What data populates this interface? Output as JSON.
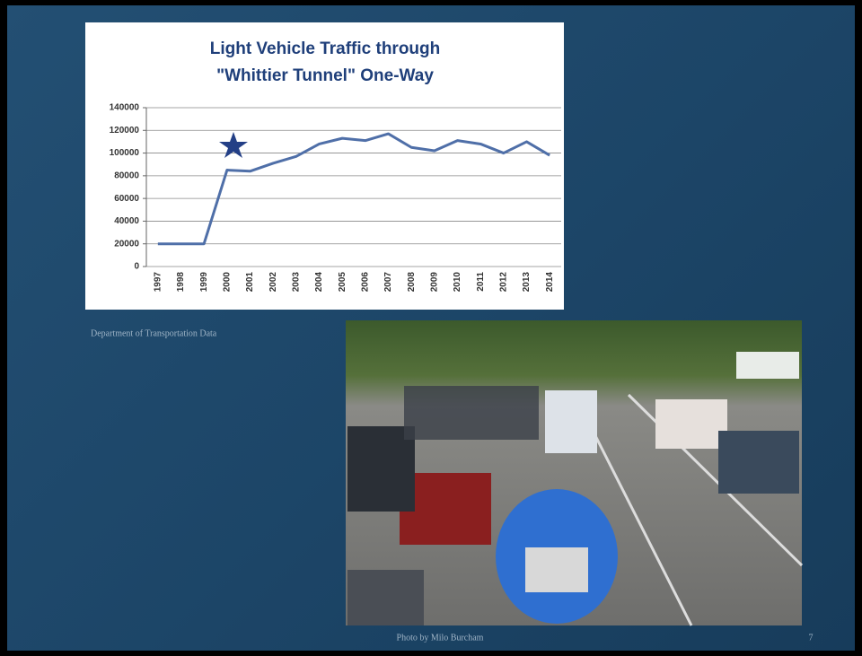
{
  "chart_data": {
    "type": "line",
    "title": [
      "Light Vehicle Traffic through",
      "\"Whittier Tunnel\" One-Way"
    ],
    "categories": [
      "1997",
      "1998",
      "1999",
      "2000",
      "2001",
      "2002",
      "2003",
      "2004",
      "2005",
      "2006",
      "2007",
      "2008",
      "2009",
      "2010",
      "2011",
      "2012",
      "2013",
      "2014"
    ],
    "values": [
      20000,
      20000,
      20000,
      85000,
      84000,
      91000,
      97000,
      108000,
      113000,
      111000,
      117000,
      105000,
      102000,
      111000,
      108000,
      100000,
      110000,
      98000
    ],
    "color": "#4f6fa8",
    "ylim": [
      0,
      140000
    ],
    "yticks": [
      0,
      20000,
      40000,
      60000,
      80000,
      100000,
      120000,
      140000
    ],
    "grid": true
  },
  "chart_source": "Department of Transportation Data",
  "photo_credit": "Photo by Milo Burcham",
  "slide_number": "7"
}
